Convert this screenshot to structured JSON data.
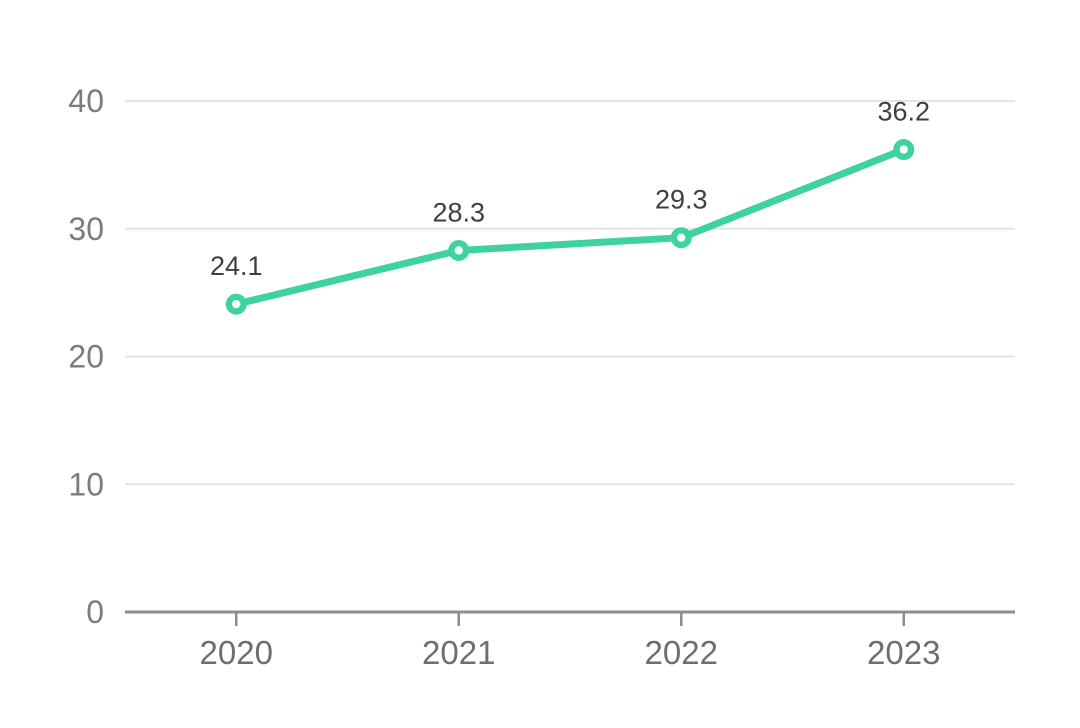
{
  "chart_data": {
    "type": "line",
    "categories": [
      "2020",
      "2021",
      "2022",
      "2023"
    ],
    "values": [
      24.1,
      28.3,
      29.3,
      36.2
    ],
    "data_labels": [
      "24.1",
      "28.3",
      "29.3",
      "36.2"
    ],
    "ytick_labels": [
      "0",
      "10",
      "20",
      "30",
      "40"
    ],
    "yticks": [
      0,
      10,
      20,
      30,
      40
    ],
    "ylim": [
      0,
      40
    ],
    "grid": true,
    "legend": false,
    "colors": {
      "line": "#3ed2a0",
      "marker_ring": "#3ed2a0",
      "marker_center": "#f2fdf8",
      "gridline": "#e3e3e8",
      "axis_line": "#8d8d8d",
      "tick_mark": "#8d8d8d",
      "ytick_text": "#7c7c7c",
      "xtick_text": "#6e6e6e",
      "data_label_text": "#3f3f3f",
      "background": "#ffffff"
    }
  }
}
